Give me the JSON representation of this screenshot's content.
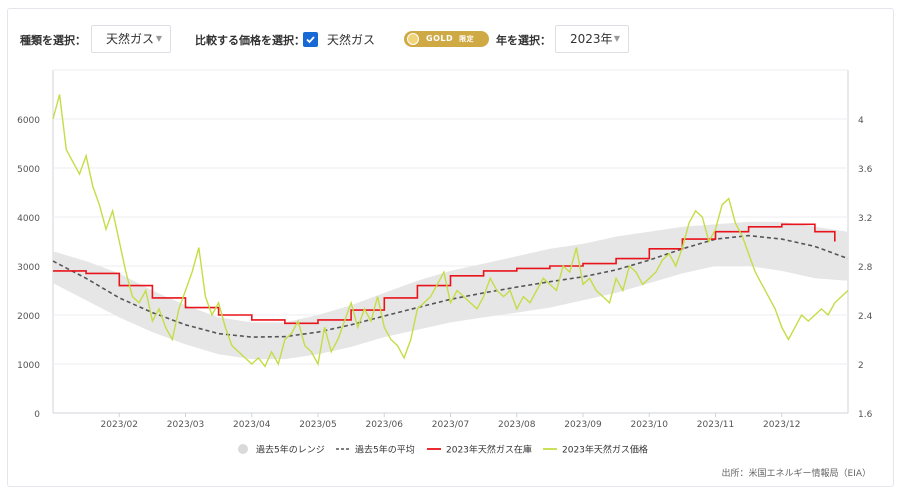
{
  "controls": {
    "type_label": "種類を選択：",
    "type_value": "天然ガス",
    "compare_label": "比較する価格を選択：",
    "compare_checkbox_label": "天然ガス",
    "compare_checked": true,
    "gold_badge": "GOLD",
    "gold_sub": "限定",
    "year_label": "年を選択：",
    "year_value": "2023年"
  },
  "source": "出所：米国エネルギー情報局（EIA）",
  "colors": {
    "range": "#e6e6e6",
    "avg": "#555555",
    "storage": "#e8141b",
    "price": "#c4dd45",
    "gold": "#cfa944",
    "checkbox": "#1769d6"
  },
  "chart_data": {
    "type": "line",
    "x_ticks": [
      "2023/02",
      "2023/03",
      "2023/04",
      "2023/05",
      "2023/06",
      "2023/07",
      "2023/08",
      "2023/09",
      "2023/10",
      "2023/11",
      "2023/12"
    ],
    "x_tick_positions_month": [
      1,
      2,
      3,
      4,
      5,
      6,
      7,
      8,
      9,
      10,
      11
    ],
    "x_range_month": [
      0,
      12
    ],
    "y_left_ticks": [
      "0",
      "1000",
      "2000",
      "3000",
      "4000",
      "5000",
      "6000"
    ],
    "y_left_lim": [
      0,
      7000
    ],
    "y_right_ticks": [
      "1.6",
      "2",
      "2.4",
      "2.8",
      "3.2",
      "3.6",
      "4"
    ],
    "y_right_lim": [
      1.6,
      4.4
    ],
    "legend": [
      "過去5年のレンジ",
      "過去5年の平均",
      "2023年天然ガス在庫",
      "2023年天然ガス価格"
    ],
    "legend_position": "bottom",
    "series": [
      {
        "name": "過去5年のレンジ",
        "axis": "left",
        "kind": "band",
        "x": [
          0,
          0.5,
          1,
          1.5,
          2,
          2.5,
          3,
          3.5,
          4,
          4.5,
          5,
          5.5,
          6,
          6.5,
          7,
          7.5,
          8,
          8.5,
          9,
          9.5,
          10,
          10.5,
          11,
          11.5,
          12
        ],
        "lower": [
          2650,
          2300,
          1950,
          1650,
          1400,
          1200,
          1100,
          1100,
          1200,
          1350,
          1550,
          1700,
          1850,
          1950,
          2050,
          2150,
          2300,
          2450,
          2650,
          2850,
          3000,
          3000,
          2900,
          2750,
          2700
        ],
        "upper": [
          3300,
          3100,
          2850,
          2500,
          2200,
          1950,
          1850,
          1850,
          2000,
          2200,
          2450,
          2700,
          2900,
          3050,
          3200,
          3350,
          3450,
          3600,
          3700,
          3800,
          3850,
          3900,
          3900,
          3800,
          3700
        ]
      },
      {
        "name": "過去5年の平均",
        "axis": "left",
        "kind": "dashed",
        "x": [
          0,
          0.5,
          1,
          1.5,
          2,
          2.5,
          3,
          3.5,
          4,
          4.5,
          5,
          5.5,
          6,
          6.5,
          7,
          7.5,
          8,
          8.5,
          9,
          9.5,
          10,
          10.5,
          11,
          11.5,
          12
        ],
        "values": [
          3100,
          2750,
          2350,
          2050,
          1800,
          1620,
          1550,
          1560,
          1650,
          1800,
          1980,
          2150,
          2320,
          2450,
          2570,
          2680,
          2780,
          2920,
          3120,
          3350,
          3550,
          3620,
          3550,
          3400,
          3150
        ]
      },
      {
        "name": "2023年天然ガス在庫",
        "axis": "left",
        "kind": "step",
        "x": [
          0,
          0.5,
          1,
          1.5,
          2,
          2.5,
          3,
          3.5,
          4,
          4.5,
          5,
          5.5,
          6,
          6.5,
          7,
          7.5,
          8,
          8.5,
          9,
          9.5,
          10,
          10.5,
          11,
          11.5,
          11.8
        ],
        "values": [
          2900,
          2850,
          2600,
          2350,
          2150,
          2000,
          1900,
          1830,
          1900,
          2100,
          2350,
          2600,
          2800,
          2900,
          2950,
          3000,
          3050,
          3150,
          3350,
          3550,
          3700,
          3800,
          3850,
          3700,
          3500
        ]
      },
      {
        "name": "2023年天然ガス価格",
        "axis": "right",
        "kind": "line",
        "x": [
          0,
          0.1,
          0.2,
          0.3,
          0.4,
          0.5,
          0.6,
          0.7,
          0.8,
          0.9,
          1,
          1.1,
          1.2,
          1.3,
          1.4,
          1.5,
          1.6,
          1.7,
          1.8,
          1.9,
          2,
          2.1,
          2.2,
          2.3,
          2.4,
          2.5,
          2.6,
          2.7,
          2.8,
          2.9,
          3,
          3.1,
          3.2,
          3.3,
          3.4,
          3.5,
          3.6,
          3.7,
          3.8,
          3.9,
          4,
          4.1,
          4.2,
          4.3,
          4.4,
          4.5,
          4.6,
          4.7,
          4.8,
          4.9,
          5,
          5.1,
          5.2,
          5.3,
          5.4,
          5.5,
          5.6,
          5.7,
          5.8,
          5.9,
          6,
          6.1,
          6.2,
          6.3,
          6.4,
          6.5,
          6.6,
          6.7,
          6.8,
          6.9,
          7,
          7.1,
          7.2,
          7.3,
          7.4,
          7.5,
          7.6,
          7.7,
          7.8,
          7.9,
          8,
          8.1,
          8.2,
          8.3,
          8.4,
          8.5,
          8.6,
          8.7,
          8.8,
          8.9,
          9,
          9.1,
          9.2,
          9.3,
          9.4,
          9.5,
          9.6,
          9.7,
          9.8,
          9.9,
          10,
          10.1,
          10.2,
          10.3,
          10.4,
          10.5,
          10.6,
          10.7,
          10.8,
          10.9,
          11,
          11.1,
          11.2,
          11.3,
          11.4,
          11.5,
          11.6,
          11.7,
          11.8,
          11.9,
          12
        ],
        "values": [
          4.0,
          4.2,
          3.75,
          3.65,
          3.55,
          3.7,
          3.45,
          3.3,
          3.1,
          3.25,
          3.0,
          2.75,
          2.55,
          2.5,
          2.6,
          2.35,
          2.45,
          2.3,
          2.2,
          2.45,
          2.6,
          2.75,
          2.95,
          2.55,
          2.4,
          2.5,
          2.3,
          2.15,
          2.1,
          2.05,
          2.0,
          2.05,
          1.98,
          2.1,
          2.0,
          2.2,
          2.25,
          2.35,
          2.15,
          2.1,
          2.0,
          2.3,
          2.1,
          2.2,
          2.35,
          2.5,
          2.3,
          2.45,
          2.35,
          2.55,
          2.3,
          2.2,
          2.15,
          2.05,
          2.2,
          2.45,
          2.5,
          2.55,
          2.65,
          2.75,
          2.5,
          2.6,
          2.55,
          2.5,
          2.45,
          2.55,
          2.7,
          2.6,
          2.55,
          2.6,
          2.45,
          2.55,
          2.5,
          2.6,
          2.7,
          2.65,
          2.6,
          2.8,
          2.75,
          2.95,
          2.65,
          2.7,
          2.6,
          2.55,
          2.5,
          2.7,
          2.6,
          2.8,
          2.75,
          2.65,
          2.7,
          2.75,
          2.85,
          2.9,
          2.8,
          2.95,
          3.15,
          3.25,
          3.2,
          3.0,
          3.1,
          3.3,
          3.35,
          3.15,
          3.05,
          2.9,
          2.75,
          2.65,
          2.55,
          2.45,
          2.3,
          2.2,
          2.3,
          2.4,
          2.35,
          2.4,
          2.45,
          2.4,
          2.5,
          2.55,
          2.6
        ]
      }
    ]
  }
}
